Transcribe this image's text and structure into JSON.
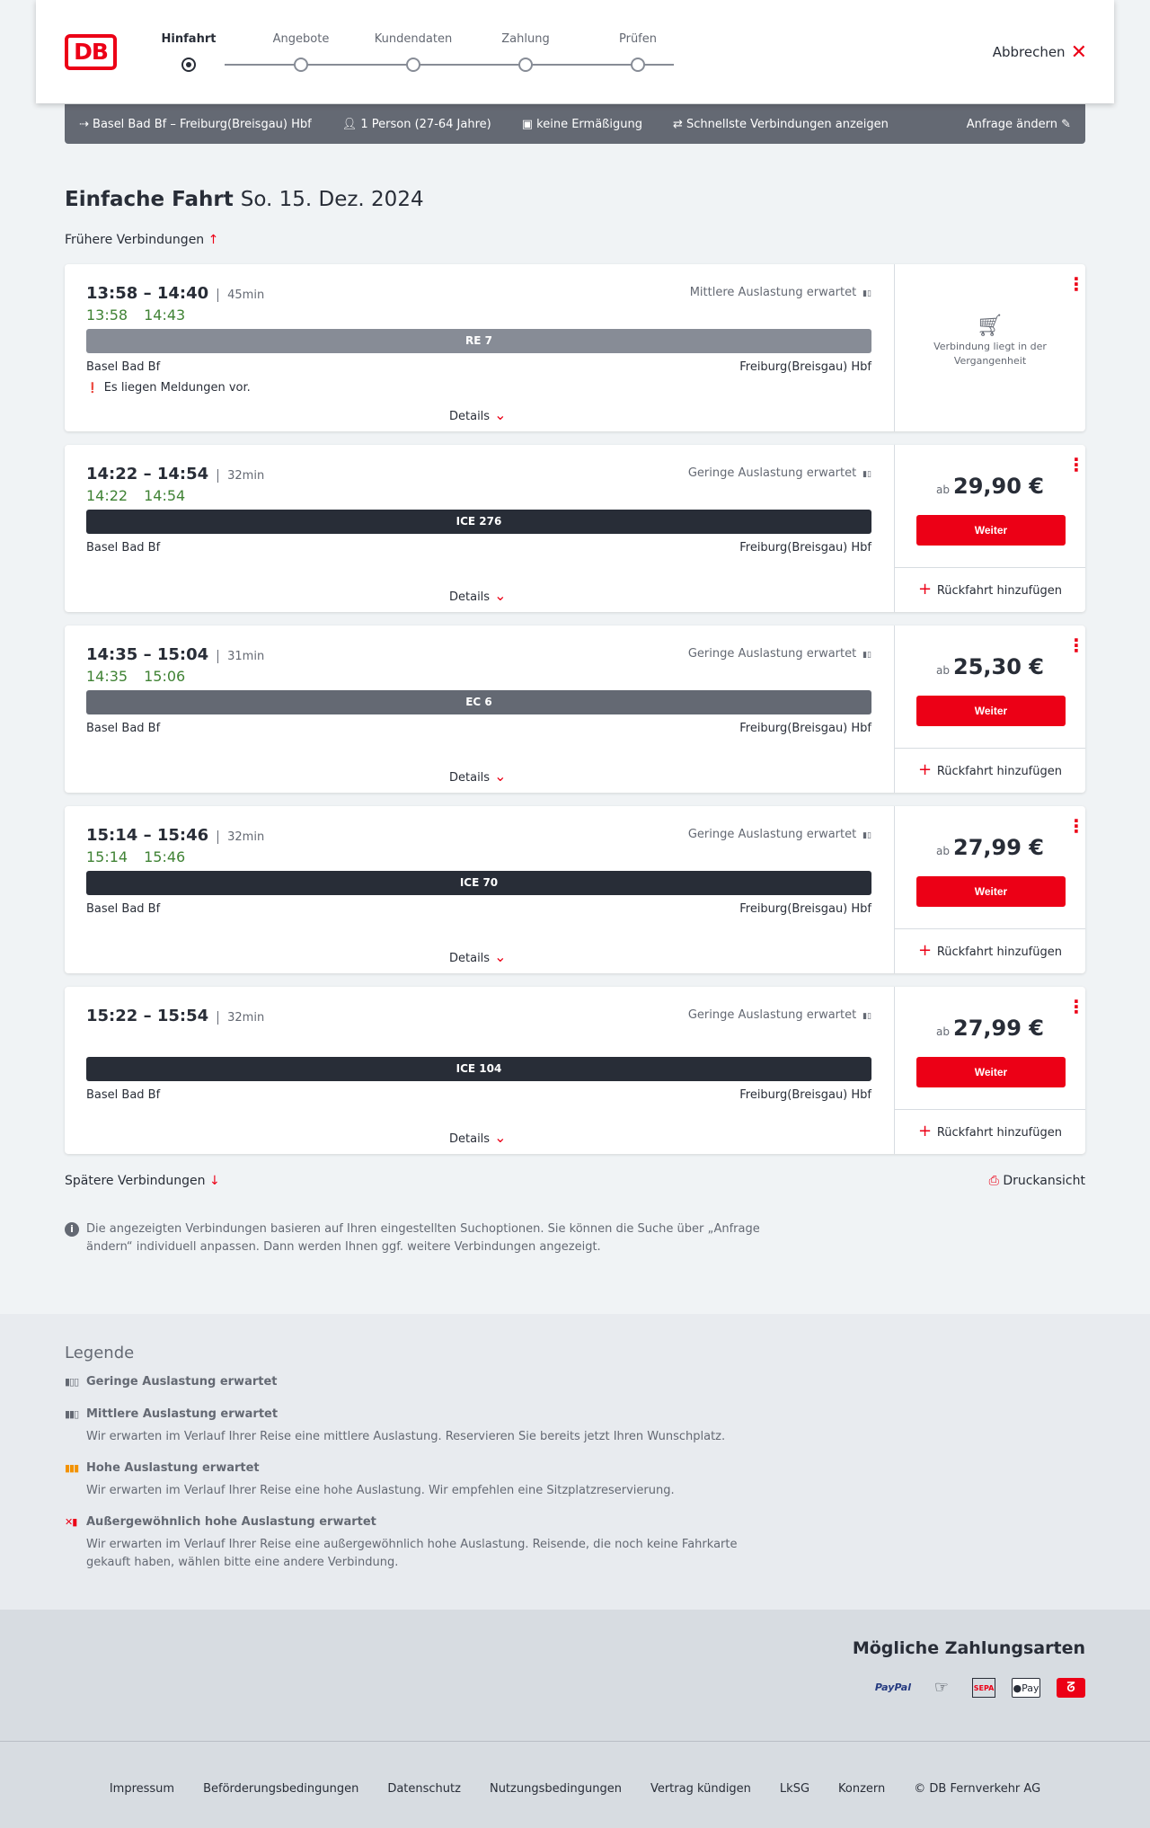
{
  "header": {
    "steps": [
      "Hinfahrt",
      "Angebote",
      "Kundendaten",
      "Zahlung",
      "Prüfen"
    ],
    "active_step": 0,
    "cancel": "Abbrechen",
    "logo": "DB"
  },
  "summary": {
    "route": "Basel Bad Bf – Freiburg(Breisgau) Hbf",
    "passengers": "1 Person (27-64 Jahre)",
    "discount": "keine Ermäßigung",
    "filter": "Schnellste Verbindungen anzeigen",
    "edit": "Anfrage ändern"
  },
  "page": {
    "title": "Einfache Fahrt",
    "date": "So. 15. Dez. 2024",
    "earlier": "Frühere Verbindungen",
    "later": "Spätere Verbindungen",
    "print": "Druckansicht",
    "info": "Die angezeigten Verbindungen basieren auf Ihren eingestellten Suchoptionen. Sie können die Suche über „Anfrage ändern“ individuell anpassen. Dann werden Ihnen ggf. weitere Verbindungen angezeigt."
  },
  "connections": [
    {
      "time": "13:58 – 14:40",
      "duration": "45min",
      "rt_dep": "13:58",
      "rt_arr": "14:43",
      "load": "Mittlere Auslastung erwartet",
      "train": "RE 7",
      "train_color": "#878c96",
      "from": "Basel Bad Bf",
      "to": "Freiburg(Breisgau) Hbf",
      "message": "Es liegen Meldungen vor.",
      "details": "Details",
      "past": "Verbindung liegt in der Vergangenheit"
    },
    {
      "time": "14:22 – 14:54",
      "duration": "32min",
      "rt_dep": "14:22",
      "rt_arr": "14:54",
      "load": "Geringe Auslastung erwartet",
      "train": "ICE 276",
      "train_color": "#282d37",
      "from": "Basel Bad Bf",
      "to": "Freiburg(Breisgau) Hbf",
      "details": "Details",
      "price_prefix": "ab",
      "price": "29,90 €",
      "button": "Weiter",
      "return": "Rückfahrt hinzufügen"
    },
    {
      "time": "14:35 – 15:04",
      "duration": "31min",
      "rt_dep": "14:35",
      "rt_arr": "15:06",
      "load": "Geringe Auslastung erwartet",
      "train": "EC 6",
      "train_color": "#646973",
      "from": "Basel Bad Bf",
      "to": "Freiburg(Breisgau) Hbf",
      "details": "Details",
      "price_prefix": "ab",
      "price": "25,30 €",
      "button": "Weiter",
      "return": "Rückfahrt hinzufügen"
    },
    {
      "time": "15:14 – 15:46",
      "duration": "32min",
      "rt_dep": "15:14",
      "rt_arr": "15:46",
      "load": "Geringe Auslastung erwartet",
      "train": "ICE 70",
      "train_color": "#282d37",
      "from": "Basel Bad Bf",
      "to": "Freiburg(Breisgau) Hbf",
      "details": "Details",
      "price_prefix": "ab",
      "price": "27,99 €",
      "button": "Weiter",
      "return": "Rückfahrt hinzufügen"
    },
    {
      "time": "15:22 – 15:54",
      "duration": "32min",
      "load": "Geringe Auslastung erwartet",
      "train": "ICE 104",
      "train_color": "#282d37",
      "from": "Basel Bad Bf",
      "to": "Freiburg(Breisgau) Hbf",
      "details": "Details",
      "price_prefix": "ab",
      "price": "27,99 €",
      "button": "Weiter",
      "return": "Rückfahrt hinzufügen"
    }
  ],
  "legend": {
    "title": "Legende",
    "items": [
      {
        "title": "Geringe Auslastung erwartet",
        "color": "#646973"
      },
      {
        "title": "Mittlere Auslastung erwartet",
        "desc": "Wir erwarten im Verlauf Ihrer Reise eine mittlere Auslastung. Reservieren Sie bereits jetzt Ihren Wunschplatz.",
        "color": "#646973"
      },
      {
        "title": "Hohe Auslastung erwartet",
        "desc": "Wir erwarten im Verlauf Ihrer Reise eine hohe Auslastung. Wir empfehlen eine Sitzplatzreservierung.",
        "color": "#f39200"
      },
      {
        "title": "Außergewöhnlich hohe Auslastung erwartet",
        "desc": "Wir erwarten im Verlauf Ihrer Reise eine außergewöhnlich hohe Auslastung. Reisende, die noch keine Fahrkarte gekauft haben, wählen bitte eine andere Verbindung.",
        "color": "#ec0016"
      }
    ]
  },
  "payment": {
    "title": "Mögliche Zahlungsarten",
    "methods": [
      "PayPal",
      "credit-card-icon",
      "SEPA",
      "Pay",
      "giropay-icon"
    ]
  },
  "footer": [
    "Impressum",
    "Beförderungsbedingungen",
    "Datenschutz",
    "Nutzungsbedingungen",
    "Vertrag kündigen",
    "LkSG",
    "Konzern",
    "© DB Fernverkehr AG"
  ]
}
